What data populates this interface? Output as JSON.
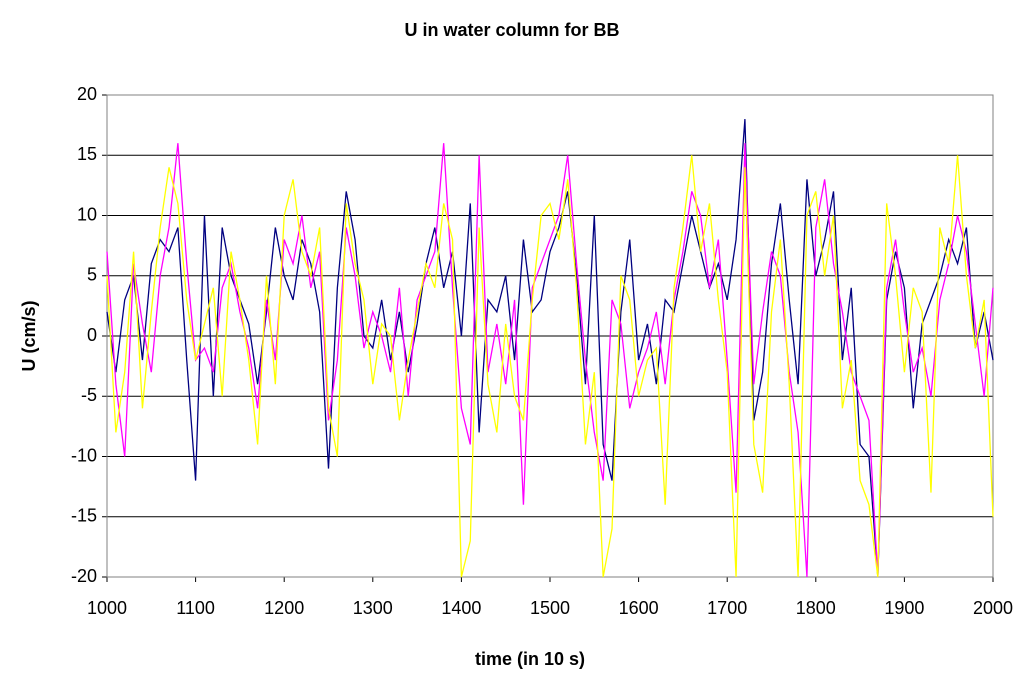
{
  "chart_data": {
    "type": "line",
    "title": "U in water column for BB",
    "xlabel": "time (in 10 s)",
    "ylabel": "U (cm/s)",
    "x": [
      1000,
      1010,
      1020,
      1030,
      1040,
      1050,
      1060,
      1070,
      1080,
      1090,
      1100,
      1110,
      1120,
      1130,
      1140,
      1150,
      1160,
      1170,
      1180,
      1190,
      1200,
      1210,
      1220,
      1230,
      1240,
      1250,
      1260,
      1270,
      1280,
      1290,
      1300,
      1310,
      1320,
      1330,
      1340,
      1350,
      1360,
      1370,
      1380,
      1390,
      1400,
      1410,
      1420,
      1430,
      1440,
      1450,
      1460,
      1470,
      1480,
      1490,
      1500,
      1510,
      1520,
      1530,
      1540,
      1550,
      1560,
      1570,
      1580,
      1590,
      1600,
      1610,
      1620,
      1630,
      1640,
      1650,
      1660,
      1670,
      1680,
      1690,
      1700,
      1710,
      1720,
      1730,
      1740,
      1750,
      1760,
      1770,
      1780,
      1790,
      1800,
      1810,
      1820,
      1830,
      1840,
      1850,
      1860,
      1870,
      1880,
      1890,
      1900,
      1910,
      1920,
      1930,
      1940,
      1950,
      1960,
      1970,
      1980,
      1990,
      2000
    ],
    "series": [
      {
        "color": "#000080",
        "values": [
          2,
          -3,
          3,
          5,
          -2,
          6,
          8,
          7,
          9,
          -2,
          -12,
          10,
          -5,
          9,
          5,
          3,
          1,
          -4,
          2,
          9,
          5,
          3,
          8,
          6,
          2,
          -11,
          4,
          12,
          8,
          0,
          -1,
          3,
          -2,
          2,
          -3,
          1,
          6,
          9,
          4,
          7,
          0,
          11,
          -8,
          3,
          2,
          5,
          -2,
          8,
          2,
          3,
          7,
          9,
          12,
          5,
          -4,
          10,
          -9,
          -12,
          2,
          8,
          -2,
          1,
          -4,
          3,
          2,
          6,
          10,
          7,
          4,
          6,
          3,
          8,
          18,
          -7,
          -3,
          6,
          11,
          3,
          -4,
          13,
          5,
          8,
          12,
          -2,
          4,
          -9,
          -10,
          -20,
          3,
          7,
          4,
          -6,
          1,
          3,
          5,
          8,
          6,
          9,
          -1,
          2,
          -2
        ]
      },
      {
        "color": "#ff00ff",
        "values": [
          7,
          -4,
          -10,
          6,
          1,
          -3,
          5,
          9,
          16,
          6,
          -2,
          -1,
          -3,
          4,
          6,
          2,
          -1,
          -6,
          3,
          -2,
          8,
          6,
          10,
          4,
          7,
          -7,
          -2,
          9,
          5,
          -1,
          2,
          0,
          -3,
          4,
          -5,
          3,
          5,
          7,
          16,
          4,
          -6,
          -9,
          15,
          -3,
          1,
          -4,
          3,
          -14,
          4,
          6,
          8,
          10,
          15,
          6,
          -2,
          -8,
          -12,
          3,
          1,
          -6,
          -3,
          -1,
          2,
          -4,
          3,
          7,
          12,
          10,
          4,
          8,
          -2,
          -13,
          16,
          -4,
          2,
          7,
          5,
          -3,
          -8,
          -20,
          9,
          13,
          6,
          2,
          -3,
          -5,
          -7,
          -20,
          4,
          8,
          2,
          -3,
          -1,
          -5,
          3,
          6,
          10,
          7,
          1,
          -5,
          4
        ]
      },
      {
        "color": "#ffff00",
        "values": [
          5,
          -8,
          -3,
          7,
          -6,
          2,
          9,
          14,
          11,
          3,
          -2,
          1,
          4,
          -5,
          7,
          3,
          -2,
          -9,
          5,
          -4,
          10,
          13,
          7,
          5,
          9,
          -6,
          -10,
          11,
          6,
          3,
          -4,
          1,
          0,
          -7,
          -2,
          2,
          6,
          4,
          11,
          8,
          -20,
          -17,
          9,
          -4,
          -8,
          1,
          -5,
          -7,
          3,
          10,
          11,
          8,
          13,
          4,
          -9,
          -3,
          -20,
          -16,
          5,
          3,
          -5,
          -2,
          -1,
          -14,
          4,
          9,
          15,
          7,
          11,
          3,
          -3,
          -20,
          14,
          -9,
          -13,
          2,
          8,
          -4,
          -20,
          10,
          12,
          5,
          10,
          -6,
          -2,
          -12,
          -14,
          -20,
          11,
          5,
          -3,
          4,
          2,
          -13,
          9,
          6,
          15,
          5,
          -1,
          3,
          -15
        ]
      }
    ],
    "xlim": [
      1000,
      2000
    ],
    "xticks": [
      1000,
      1100,
      1200,
      1300,
      1400,
      1500,
      1600,
      1700,
      1800,
      1900,
      2000
    ],
    "ylim": [
      -20,
      20
    ],
    "yticks": [
      -20,
      -15,
      -10,
      -5,
      0,
      5,
      10,
      15,
      20
    ],
    "grid": true
  }
}
